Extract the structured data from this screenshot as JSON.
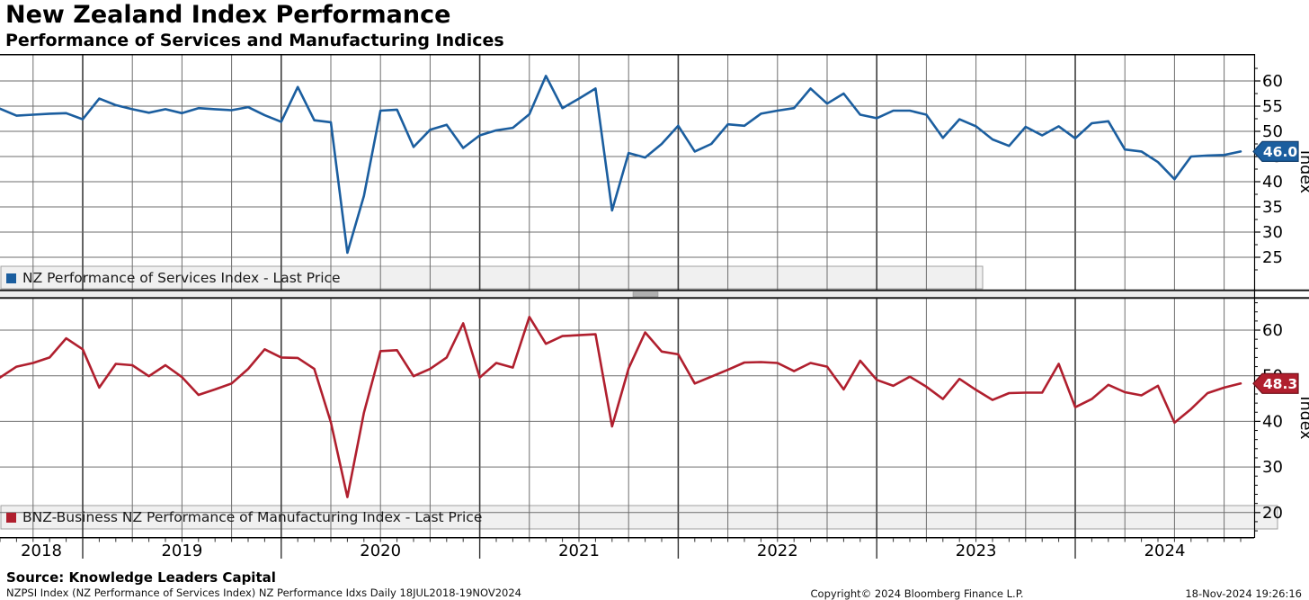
{
  "header": {
    "title": "New Zealand Index Performance",
    "subtitle": "Performance of Services and Manufacturing Indices"
  },
  "colors": {
    "services_blue": "#1b5e9f",
    "services_badge_border": "#123f6e",
    "manufacturing_red": "#b01f2e",
    "manufacturing_badge_border": "#6e0f18",
    "badge_text": "#ffffff",
    "grid": "#6e6e6e",
    "grid_dark": "#3c3c3c",
    "axis": "#000000",
    "legend_bg": "#f0f0f0",
    "legend_border": "#a0a0a0"
  },
  "panels": [
    {
      "name": "services",
      "legend": "NZ Performance of Services Index - Last Price",
      "axis_label": "Index",
      "last_price": "46.0",
      "y_ticks": [
        60,
        55,
        50,
        45,
        40,
        35,
        30,
        25
      ]
    },
    {
      "name": "manufacturing",
      "legend": "BNZ-Business NZ Performance of Manufacturing Index - Last Price",
      "axis_label": "Index",
      "last_price": "48.3",
      "y_ticks": [
        60,
        50,
        40,
        30,
        20
      ]
    }
  ],
  "x_axis": {
    "years": [
      "2018",
      "2019",
      "2020",
      "2021",
      "2022",
      "2023",
      "2024"
    ]
  },
  "footer": {
    "source": "Source: Knowledge Leaders Capital",
    "meta": "NZPSI Index (NZ Performance of Services Index) NZ Performance Idxs  Daily 18JUL2018-19NOV2024",
    "copyright": "Copyright© 2024 Bloomberg Finance L.P.",
    "timestamp": "18-Nov-2024 19:26:16"
  },
  "chart_data": [
    {
      "type": "line",
      "name": "NZ Performance of Services Index - Last Price",
      "color_key": "services_blue",
      "freq": "monthly",
      "start": "2018-07",
      "end": "2024-10",
      "ylabel": "Index",
      "y_axis_ticks": [
        25,
        30,
        35,
        40,
        45,
        50,
        55,
        60
      ],
      "last_price": 46.0,
      "values": [
        54.5,
        53.1,
        53.3,
        53.5,
        53.6,
        52.4,
        56.5,
        55.2,
        54.4,
        53.7,
        54.4,
        53.6,
        54.6,
        54.4,
        54.2,
        54.8,
        53.2,
        51.9,
        58.8,
        52.2,
        51.8,
        25.9,
        37.2,
        54.1,
        54.3,
        46.9,
        50.3,
        51.3,
        46.7,
        49.2,
        50.2,
        50.7,
        53.4,
        61.0,
        54.6,
        56.5,
        58.5,
        34.3,
        45.7,
        44.8,
        47.5,
        51.1,
        46.0,
        47.5,
        51.4,
        51.1,
        53.5,
        54.1,
        54.6,
        58.5,
        55.5,
        57.5,
        53.3,
        52.6,
        54.1,
        54.1,
        53.3,
        48.7,
        52.4,
        51.0,
        48.4,
        47.1,
        50.9,
        49.2,
        51.0,
        48.6,
        51.6,
        52.0,
        46.4,
        46.0,
        43.9,
        40.5,
        45.0,
        45.2,
        45.3,
        46.0
      ]
    },
    {
      "type": "line",
      "name": "BNZ-Business NZ Performance of Manufacturing Index - Last Price",
      "color_key": "manufacturing_red",
      "freq": "monthly",
      "start": "2018-07",
      "end": "2024-10",
      "ylabel": "Index",
      "y_axis_ticks": [
        20,
        30,
        40,
        50,
        60
      ],
      "last_price": 48.3,
      "values": [
        49.6,
        52.0,
        52.8,
        54.0,
        58.2,
        55.8,
        47.4,
        52.6,
        52.3,
        49.9,
        52.3,
        49.7,
        45.8,
        47.0,
        48.3,
        51.5,
        55.8,
        54.0,
        53.9,
        51.5,
        39.8,
        23.4,
        41.9,
        55.4,
        55.6,
        49.9,
        51.5,
        54.0,
        61.5,
        49.6,
        52.8,
        51.8,
        62.9,
        57.0,
        58.7,
        58.9,
        59.1,
        38.9,
        51.6,
        59.5,
        55.3,
        54.7,
        48.3,
        49.8,
        51.3,
        52.9,
        53.0,
        52.8,
        51.0,
        52.8,
        52.0,
        47.0,
        53.3,
        49.1,
        47.8,
        49.8,
        47.6,
        44.9,
        49.3,
        46.9,
        44.7,
        46.2,
        46.3,
        46.3,
        52.6,
        43.1,
        44.9,
        48.0,
        46.4,
        45.7,
        47.8,
        39.7,
        42.7,
        46.2,
        47.4,
        48.3
      ]
    }
  ]
}
